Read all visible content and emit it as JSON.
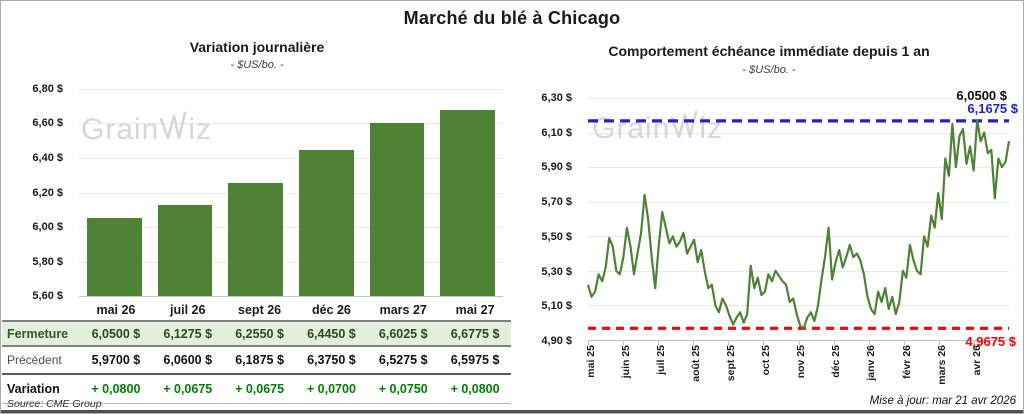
{
  "page": {
    "title": "Marché du blé à Chicago",
    "watermark_prefix": "Grain",
    "watermark_suffix": "iz",
    "source": "Source: CME Group",
    "updated": "Mise à jour: mar 21 avr 2026"
  },
  "colors": {
    "bar_green": "#4e8234",
    "line_green": "#4e8234",
    "close_row_bg": "#e2efda",
    "close_text": "#375623",
    "variation_green": "#008000",
    "high_blue": "#2222cc",
    "low_red": "#fe0000",
    "watermark_gray": "#d7d7d7"
  },
  "chart_data": [
    {
      "type": "bar",
      "title": "Variation journalière",
      "subtitle": "- $US/bo. -",
      "categories": [
        "mai 26",
        "juil 26",
        "sept 26",
        "déc 26",
        "mars 27",
        "mai 27"
      ],
      "values": [
        6.05,
        6.1275,
        6.255,
        6.445,
        6.6025,
        6.6775
      ],
      "ylim": [
        5.6,
        6.8
      ],
      "yticks": [
        "6,80 $",
        "6,60 $",
        "6,40 $",
        "6,20 $",
        "6,00 $",
        "5,80 $",
        "5,60 $"
      ],
      "grid": true,
      "bar_color": "#4e8234"
    },
    {
      "type": "line",
      "title": "Comportement échéance immédiate depuis 1 an",
      "subtitle": "- $US/bo. -",
      "x_ticks": [
        "mai 25",
        "juin 25",
        "juil 25",
        "août 25",
        "sept 25",
        "oct 25",
        "nov 25",
        "déc 25",
        "janv 26",
        "févr 26",
        "mars 26",
        "avr 26"
      ],
      "values": [
        5.22,
        5.15,
        5.18,
        5.28,
        5.24,
        5.32,
        5.49,
        5.44,
        5.3,
        5.28,
        5.38,
        5.55,
        5.44,
        5.28,
        5.4,
        5.52,
        5.74,
        5.6,
        5.38,
        5.2,
        5.45,
        5.64,
        5.55,
        5.46,
        5.5,
        5.44,
        5.47,
        5.52,
        5.4,
        5.44,
        5.48,
        5.35,
        5.42,
        5.3,
        5.2,
        5.22,
        5.1,
        5.06,
        5.14,
        5.1,
        5.04,
        4.99,
        5.03,
        5.06,
        5.0,
        5.05,
        5.33,
        5.2,
        5.26,
        5.16,
        5.18,
        5.28,
        5.24,
        5.3,
        5.27,
        5.24,
        5.22,
        5.12,
        5.14,
        5.05,
        4.98,
        4.97,
        5.03,
        5.06,
        5.01,
        5.1,
        5.25,
        5.38,
        5.55,
        5.25,
        5.35,
        5.42,
        5.32,
        5.38,
        5.45,
        5.38,
        5.4,
        5.36,
        5.28,
        5.15,
        5.08,
        5.05,
        5.18,
        5.12,
        5.2,
        5.08,
        5.15,
        5.05,
        5.12,
        5.3,
        5.26,
        5.45,
        5.36,
        5.3,
        5.28,
        5.5,
        5.44,
        5.62,
        5.55,
        5.75,
        5.6,
        5.95,
        5.85,
        6.15,
        5.9,
        6.08,
        6.12,
        5.92,
        6.02,
        5.88,
        6.17,
        6.05,
        6.1,
        5.98,
        6.0,
        5.72,
        5.95,
        5.9,
        5.93,
        6.05
      ],
      "ylim": [
        4.9,
        6.3
      ],
      "yticks": [
        "6,30 $",
        "6,10 $",
        "5,90 $",
        "5,70 $",
        "5,50 $",
        "5,30 $",
        "5,10 $",
        "4,90 $"
      ],
      "grid": true,
      "line_color": "#4e8234",
      "high_line": {
        "value": 6.1675,
        "label": "6,1675 $",
        "color": "#2222cc",
        "style": "dashed"
      },
      "low_line": {
        "value": 4.9675,
        "label": "4,9675 $",
        "color": "#fe0000",
        "style": "dashed"
      },
      "last_point": {
        "value": 6.05,
        "label": "6,0500 $"
      }
    }
  ],
  "table": {
    "columns": [
      "mai 26",
      "juil 26",
      "sept 26",
      "déc 26",
      "mars 27",
      "mai 27"
    ],
    "rows": [
      {
        "label": "Fermeture",
        "values": [
          "6,0500 $",
          "6,1275 $",
          "6,2550 $",
          "6,4450 $",
          "6,6025 $",
          "6,6775 $"
        ]
      },
      {
        "label": "Précédent",
        "values": [
          "5,9700 $",
          "6,0600 $",
          "6,1875 $",
          "6,3750 $",
          "6,5275 $",
          "6,5975 $"
        ]
      },
      {
        "label": "Variation",
        "values": [
          "+ 0,0800",
          "+ 0,0675",
          "+ 0,0675",
          "+ 0,0700",
          "+ 0,0750",
          "+ 0,0800"
        ]
      }
    ]
  }
}
